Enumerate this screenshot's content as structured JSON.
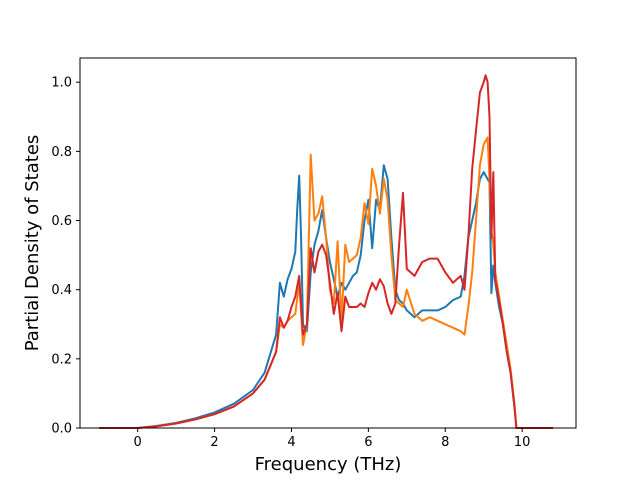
{
  "chart_data": {
    "type": "line",
    "title": "",
    "xlabel": "Frequency (THz)",
    "ylabel": "Partial Density of States",
    "xlim": [
      -1.5,
      11.4
    ],
    "ylim": [
      0.0,
      1.07
    ],
    "xticks": [
      0,
      2,
      4,
      6,
      8,
      10
    ],
    "yticks": [
      0.0,
      0.2,
      0.4,
      0.6,
      0.8,
      1.0
    ],
    "xtick_labels": [
      "0",
      "2",
      "4",
      "6",
      "8",
      "10"
    ],
    "ytick_labels": [
      "0.0",
      "0.2",
      "0.4",
      "0.6",
      "0.8",
      "1.0"
    ],
    "grid": false,
    "legend": false,
    "series": [
      {
        "color": "#1f77b4",
        "x": [
          -1.0,
          0.0,
          0.5,
          1.0,
          1.5,
          2.0,
          2.5,
          3.0,
          3.3,
          3.6,
          3.7,
          3.8,
          3.9,
          4.0,
          4.1,
          4.15,
          4.2,
          4.25,
          4.3,
          4.4,
          4.5,
          4.6,
          4.7,
          4.8,
          4.9,
          5.0,
          5.1,
          5.2,
          5.3,
          5.4,
          5.5,
          5.6,
          5.7,
          5.8,
          5.9,
          6.0,
          6.1,
          6.2,
          6.3,
          6.4,
          6.5,
          6.6,
          6.7,
          6.8,
          6.9,
          7.0,
          7.2,
          7.4,
          7.6,
          7.8,
          8.0,
          8.2,
          8.4,
          8.5,
          8.6,
          8.7,
          8.8,
          8.9,
          9.0,
          9.1,
          9.15,
          9.2,
          9.25,
          9.3,
          9.4,
          9.5,
          9.6,
          9.7,
          9.8,
          9.85,
          10.0,
          10.8
        ],
        "y": [
          0.0,
          0.0,
          0.006,
          0.015,
          0.028,
          0.045,
          0.07,
          0.11,
          0.16,
          0.27,
          0.42,
          0.38,
          0.43,
          0.46,
          0.51,
          0.63,
          0.73,
          0.55,
          0.3,
          0.28,
          0.45,
          0.53,
          0.57,
          0.63,
          0.55,
          0.48,
          0.43,
          0.38,
          0.42,
          0.4,
          0.42,
          0.44,
          0.45,
          0.5,
          0.6,
          0.66,
          0.52,
          0.66,
          0.63,
          0.76,
          0.72,
          0.55,
          0.4,
          0.37,
          0.36,
          0.34,
          0.32,
          0.34,
          0.34,
          0.34,
          0.35,
          0.37,
          0.38,
          0.44,
          0.55,
          0.6,
          0.65,
          0.72,
          0.74,
          0.72,
          0.71,
          0.39,
          0.47,
          0.42,
          0.35,
          0.3,
          0.22,
          0.16,
          0.06,
          0.0,
          0.0,
          0.0
        ]
      },
      {
        "color": "#ff7f0e",
        "x": [
          -1.0,
          0.0,
          0.5,
          1.0,
          1.5,
          2.0,
          2.5,
          3.0,
          3.3,
          3.6,
          3.7,
          3.8,
          3.9,
          4.0,
          4.1,
          4.2,
          4.3,
          4.4,
          4.5,
          4.6,
          4.7,
          4.8,
          4.9,
          5.0,
          5.1,
          5.2,
          5.3,
          5.4,
          5.5,
          5.6,
          5.7,
          5.8,
          5.9,
          6.0,
          6.1,
          6.2,
          6.3,
          6.4,
          6.5,
          6.6,
          6.7,
          6.8,
          6.9,
          7.0,
          7.2,
          7.4,
          7.6,
          7.8,
          8.0,
          8.2,
          8.4,
          8.5,
          8.6,
          8.7,
          8.8,
          8.9,
          9.0,
          9.1,
          9.15,
          9.2,
          9.25,
          9.3,
          9.4,
          9.5,
          9.6,
          9.7,
          9.8,
          9.85,
          10.0,
          10.8
        ],
        "y": [
          0.0,
          0.0,
          0.005,
          0.013,
          0.025,
          0.04,
          0.062,
          0.1,
          0.14,
          0.22,
          0.3,
          0.29,
          0.31,
          0.32,
          0.33,
          0.42,
          0.24,
          0.3,
          0.79,
          0.6,
          0.62,
          0.67,
          0.55,
          0.4,
          0.36,
          0.54,
          0.31,
          0.53,
          0.48,
          0.49,
          0.5,
          0.55,
          0.65,
          0.59,
          0.75,
          0.7,
          0.62,
          0.72,
          0.66,
          0.5,
          0.37,
          0.36,
          0.35,
          0.4,
          0.33,
          0.31,
          0.32,
          0.31,
          0.3,
          0.29,
          0.28,
          0.27,
          0.35,
          0.45,
          0.6,
          0.76,
          0.82,
          0.84,
          0.72,
          0.57,
          0.53,
          0.45,
          0.38,
          0.31,
          0.24,
          0.17,
          0.07,
          0.0,
          0.0,
          0.0
        ]
      },
      {
        "color": "#d62728",
        "x": [
          -1.0,
          0.0,
          0.5,
          1.0,
          1.5,
          2.0,
          2.5,
          3.0,
          3.3,
          3.6,
          3.7,
          3.8,
          3.9,
          4.0,
          4.1,
          4.2,
          4.3,
          4.4,
          4.5,
          4.6,
          4.7,
          4.8,
          4.9,
          5.0,
          5.1,
          5.2,
          5.3,
          5.4,
          5.5,
          5.6,
          5.7,
          5.8,
          5.9,
          6.0,
          6.1,
          6.2,
          6.3,
          6.4,
          6.5,
          6.6,
          6.7,
          6.8,
          6.9,
          7.0,
          7.2,
          7.4,
          7.6,
          7.8,
          8.0,
          8.2,
          8.4,
          8.5,
          8.6,
          8.7,
          8.8,
          8.9,
          9.0,
          9.05,
          9.1,
          9.15,
          9.2,
          9.25,
          9.3,
          9.4,
          9.5,
          9.6,
          9.7,
          9.8,
          9.85,
          10.0,
          10.8
        ],
        "y": [
          0.0,
          0.0,
          0.005,
          0.013,
          0.025,
          0.04,
          0.062,
          0.1,
          0.14,
          0.22,
          0.32,
          0.29,
          0.31,
          0.35,
          0.38,
          0.44,
          0.27,
          0.3,
          0.52,
          0.45,
          0.51,
          0.53,
          0.5,
          0.42,
          0.33,
          0.39,
          0.28,
          0.38,
          0.35,
          0.35,
          0.35,
          0.36,
          0.35,
          0.39,
          0.42,
          0.4,
          0.43,
          0.41,
          0.36,
          0.33,
          0.36,
          0.53,
          0.68,
          0.46,
          0.44,
          0.48,
          0.49,
          0.49,
          0.45,
          0.42,
          0.44,
          0.4,
          0.55,
          0.75,
          0.86,
          0.97,
          1.0,
          1.02,
          1.0,
          0.9,
          0.55,
          0.74,
          0.43,
          0.37,
          0.3,
          0.22,
          0.16,
          0.06,
          0.0,
          0.0,
          0.0
        ]
      }
    ]
  }
}
